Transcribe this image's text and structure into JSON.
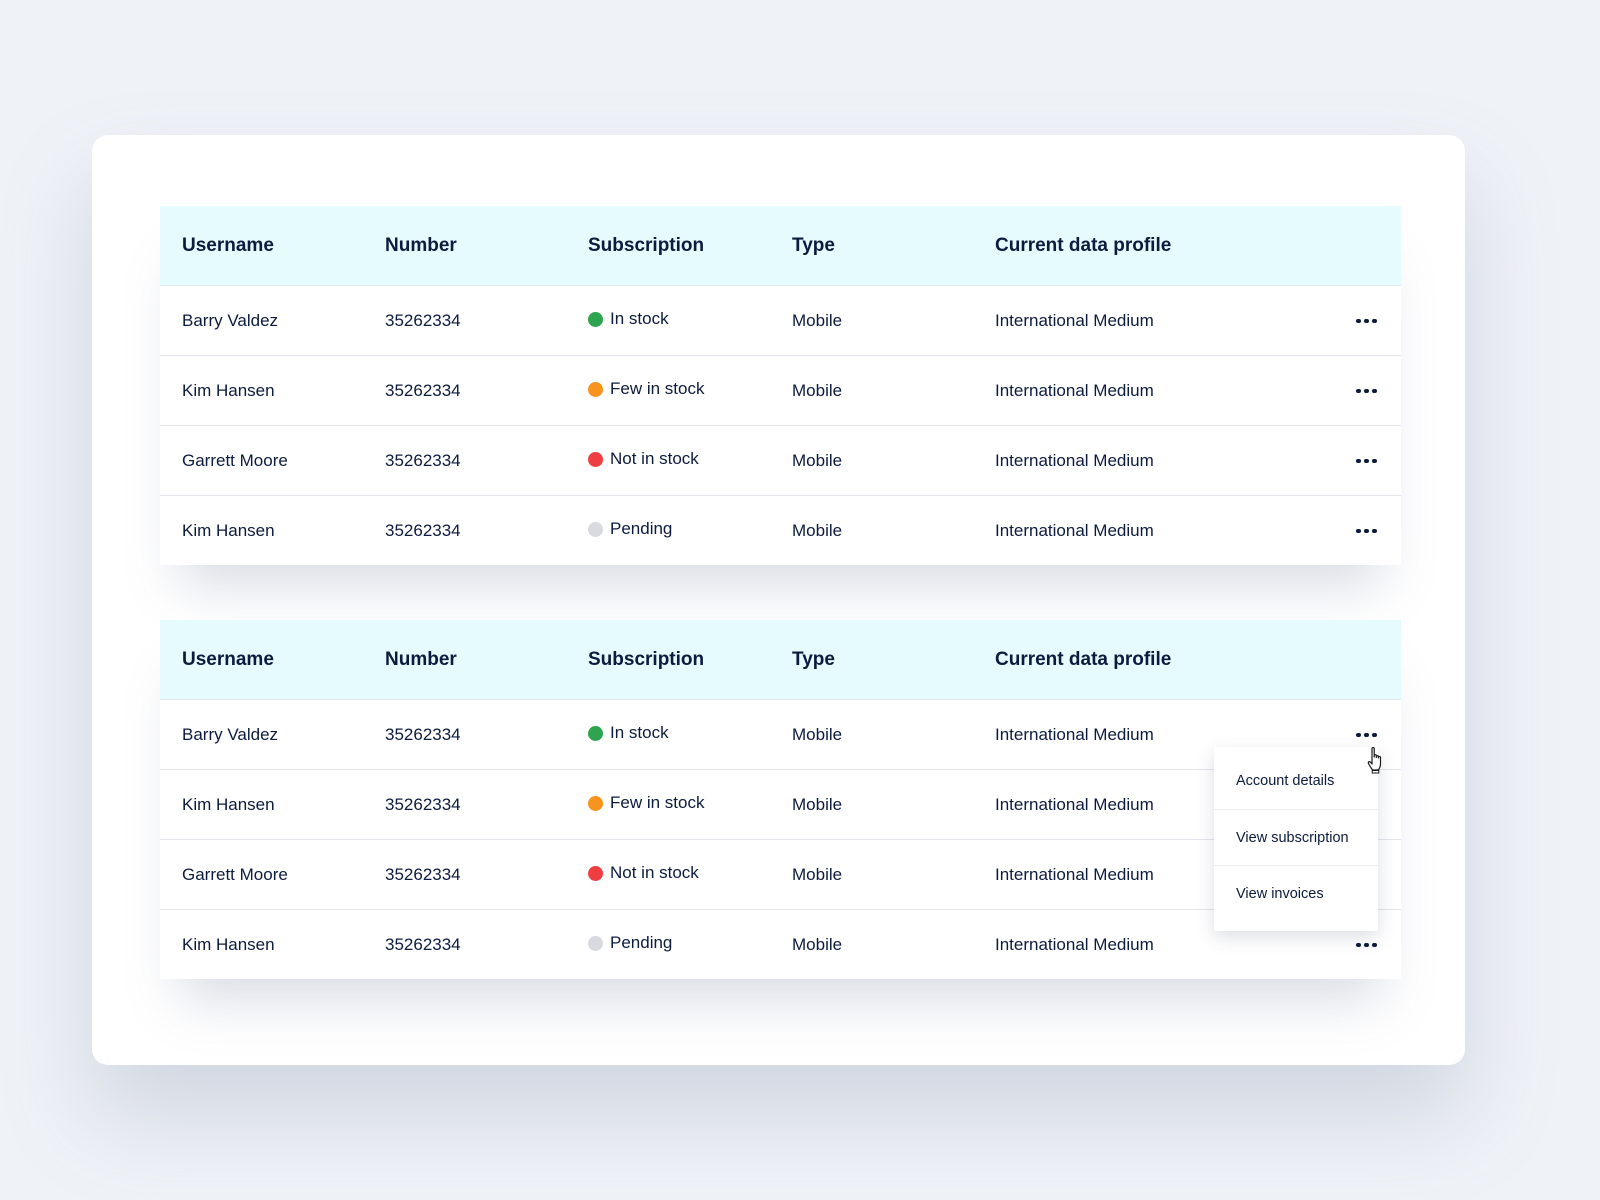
{
  "columns": [
    "Username",
    "Number",
    "Subscription",
    "Type",
    "Current data profile"
  ],
  "status_colors": {
    "in_stock": "#2ea44f",
    "few": "#f7941d",
    "none": "#ef3e42",
    "pending": "#d8dadf"
  },
  "tables": [
    {
      "rows": [
        {
          "username": "Barry Valdez",
          "number": "35262334",
          "subscription": "In stock",
          "type": "Mobile",
          "profile": "International Medium"
        },
        {
          "username": "Kim Hansen",
          "number": "35262334",
          "subscription": "Few in stock",
          "type": "Mobile",
          "profile": "International Medium"
        },
        {
          "username": "Garrett Moore",
          "number": "35262334",
          "subscription": "Not in stock",
          "type": "Mobile",
          "profile": "International Medium"
        },
        {
          "username": "Kim Hansen",
          "number": "35262334",
          "subscription": "Pending",
          "type": "Mobile",
          "profile": "International Medium"
        }
      ]
    },
    {
      "rows": [
        {
          "username": "Barry Valdez",
          "number": "35262334",
          "subscription": "In stock",
          "type": "Mobile",
          "profile": "International Medium"
        },
        {
          "username": "Kim Hansen",
          "number": "35262334",
          "subscription": "Few in stock",
          "type": "Mobile",
          "profile": "International Medium"
        },
        {
          "username": "Garrett Moore",
          "number": "35262334",
          "subscription": "Not in stock",
          "type": "Mobile",
          "profile": "International Medium"
        },
        {
          "username": "Kim Hansen",
          "number": "35262334",
          "subscription": "Pending",
          "type": "Mobile",
          "profile": "International Medium"
        }
      ]
    }
  ],
  "actions_menu": {
    "items": [
      "Account details",
      "View subscription",
      "View invoices"
    ]
  },
  "icons": {
    "row_action": "more-horizontal-icon",
    "cursor": "hand-pointer-icon"
  }
}
